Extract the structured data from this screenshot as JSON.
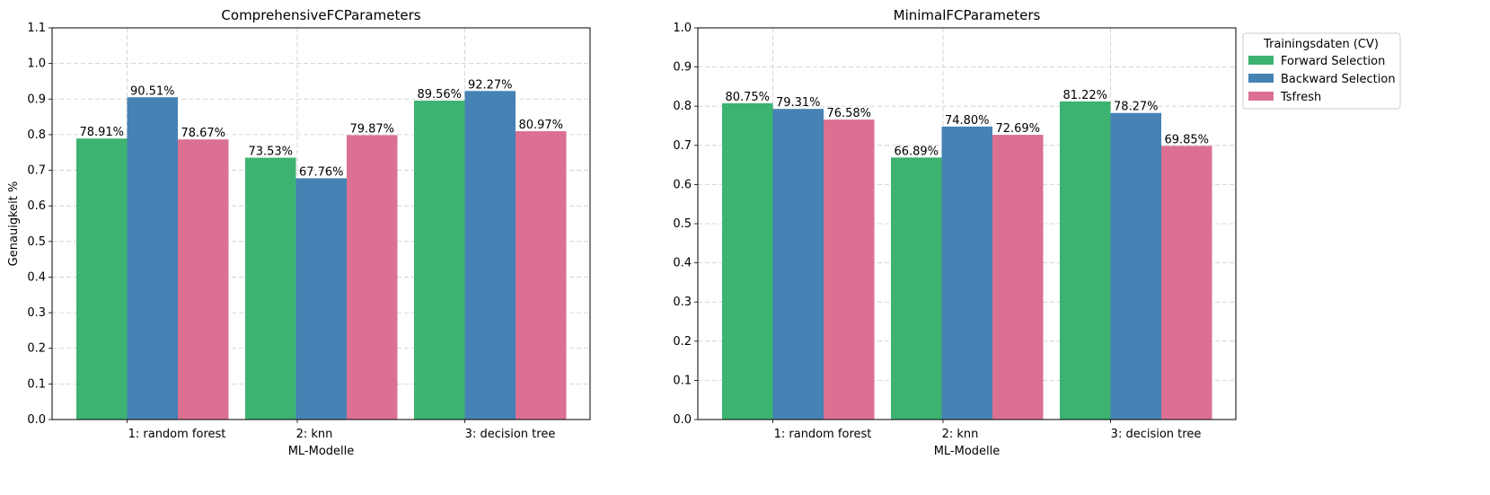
{
  "chart_data": [
    {
      "type": "bar",
      "title": "ComprehensiveFCParameters",
      "xlabel": "ML-Modelle",
      "ylabel": "Genauigkeit %",
      "ylim": [
        0.0,
        1.1
      ],
      "yticks": [
        "0.0",
        "0.1",
        "0.2",
        "0.3",
        "0.4",
        "0.5",
        "0.6",
        "0.7",
        "0.8",
        "0.9",
        "1.0",
        "1.1"
      ],
      "categories": [
        "1: random forest",
        "2: knn",
        "3: decision tree"
      ],
      "grid": true,
      "series": [
        {
          "name": "Forward Selection",
          "values": [
            0.7891,
            0.7353,
            0.8956
          ],
          "labels": [
            "78.91%",
            "73.53%",
            "89.56%"
          ]
        },
        {
          "name": "Backward Selection",
          "values": [
            0.9051,
            0.6776,
            0.9227
          ],
          "labels": [
            "90.51%",
            "67.76%",
            "92.27%"
          ]
        },
        {
          "name": "Tsfresh",
          "values": [
            0.7867,
            0.7987,
            0.8097
          ],
          "labels": [
            "78.67%",
            "79.87%",
            "80.97%"
          ]
        }
      ]
    },
    {
      "type": "bar",
      "title": "MinimalFCParameters",
      "xlabel": "ML-Modelle",
      "ylabel": "",
      "ylim": [
        0.0,
        1.0
      ],
      "yticks": [
        "0.0",
        "0.1",
        "0.2",
        "0.3",
        "0.4",
        "0.5",
        "0.6",
        "0.7",
        "0.8",
        "0.9",
        "1.0"
      ],
      "categories": [
        "1: random forest",
        "2: knn",
        "3: decision tree"
      ],
      "grid": true,
      "series": [
        {
          "name": "Forward Selection",
          "values": [
            0.8075,
            0.6689,
            0.8122
          ],
          "labels": [
            "80.75%",
            "66.89%",
            "81.22%"
          ]
        },
        {
          "name": "Backward Selection",
          "values": [
            0.7931,
            0.748,
            0.7827
          ],
          "labels": [
            "79.31%",
            "74.80%",
            "78.27%"
          ]
        },
        {
          "name": "Tsfresh",
          "values": [
            0.7658,
            0.7269,
            0.6985
          ],
          "labels": [
            "76.58%",
            "72.69%",
            "69.85%"
          ]
        }
      ]
    }
  ],
  "legend": {
    "title": "Trainingsdaten (CV)",
    "placement": "outside-right",
    "entries": [
      "Forward Selection",
      "Backward Selection",
      "Tsfresh"
    ]
  },
  "colors": {
    "Forward Selection": "#3cb371",
    "Backward Selection": "#4682b4",
    "Tsfresh": "#db7093",
    "grid": "#cccccc"
  }
}
